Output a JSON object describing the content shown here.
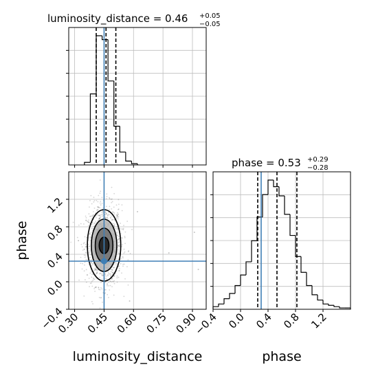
{
  "chart_data": [
    {
      "type": "histogram",
      "panel": "top-left",
      "title_main": "luminosity_distance = 0.46",
      "title_sup": "+0.05",
      "title_sub": "−0.05",
      "x_param": "luminosity_distance",
      "xlim": [
        0.27,
        0.97
      ],
      "grid": true,
      "bins": [
        {
          "x0": 0.35,
          "x1": 0.38,
          "count": 2
        },
        {
          "x0": 0.38,
          "x1": 0.41,
          "count": 55
        },
        {
          "x0": 0.41,
          "x1": 0.44,
          "count": 100
        },
        {
          "x0": 0.44,
          "x1": 0.47,
          "count": 97
        },
        {
          "x0": 0.47,
          "x1": 0.5,
          "count": 65
        },
        {
          "x0": 0.5,
          "x1": 0.53,
          "count": 30
        },
        {
          "x0": 0.53,
          "x1": 0.56,
          "count": 10
        },
        {
          "x0": 0.56,
          "x1": 0.59,
          "count": 3
        },
        {
          "x0": 0.59,
          "x1": 0.62,
          "count": 1
        }
      ],
      "quantile_lines": [
        0.41,
        0.46,
        0.51
      ],
      "truth_line": 0.45
    },
    {
      "type": "contour",
      "panel": "bottom-left",
      "xlabel": "luminosity_distance",
      "ylabel": "phase",
      "xlim": [
        0.27,
        0.97
      ],
      "ylim": [
        -0.4,
        1.6
      ],
      "x_ticks": [
        0.3,
        0.45,
        0.6,
        0.75,
        0.9
      ],
      "x_tick_labels": [
        "0.30",
        "0.45",
        "0.60",
        "0.75",
        "0.90"
      ],
      "y_ticks": [
        -0.4,
        0.0,
        0.4,
        0.8,
        1.2
      ],
      "y_tick_labels": [
        "−0.4",
        "0.0",
        "0.4",
        "0.8",
        "1.2"
      ],
      "grid": true,
      "center": [
        0.45,
        0.53
      ],
      "contour_levels": [
        {
          "rx": 0.025,
          "ry": 0.12,
          "fill": "#1a1a1a"
        },
        {
          "rx": 0.045,
          "ry": 0.25,
          "fill": "#6e6e6e"
        },
        {
          "rx": 0.065,
          "ry": 0.38,
          "fill": "#b5b5b5"
        },
        {
          "rx": 0.085,
          "ry": 0.52,
          "fill": "none"
        }
      ],
      "truth_point": [
        0.45,
        0.3
      ]
    },
    {
      "type": "histogram",
      "panel": "bottom-right",
      "title_main": "phase = 0.53",
      "title_sup": "+0.29",
      "title_sub": "−0.28",
      "x_param": "phase",
      "xlabel": "phase",
      "xlim": [
        -0.4,
        1.6
      ],
      "x_ticks": [
        -0.4,
        0.0,
        0.4,
        0.8,
        1.2
      ],
      "x_tick_labels": [
        "−0.4",
        "0.0",
        "0.4",
        "0.8",
        "1.2"
      ],
      "grid": true,
      "bins": [
        {
          "x0": -0.4,
          "x1": -0.32,
          "count": 2
        },
        {
          "x0": -0.32,
          "x1": -0.24,
          "count": 4
        },
        {
          "x0": -0.24,
          "x1": -0.16,
          "count": 8
        },
        {
          "x0": -0.16,
          "x1": -0.08,
          "count": 12
        },
        {
          "x0": -0.08,
          "x1": 0.0,
          "count": 18
        },
        {
          "x0": 0.0,
          "x1": 0.08,
          "count": 26
        },
        {
          "x0": 0.08,
          "x1": 0.16,
          "count": 36
        },
        {
          "x0": 0.16,
          "x1": 0.24,
          "count": 52
        },
        {
          "x0": 0.24,
          "x1": 0.32,
          "count": 70
        },
        {
          "x0": 0.32,
          "x1": 0.4,
          "count": 87
        },
        {
          "x0": 0.4,
          "x1": 0.48,
          "count": 98
        },
        {
          "x0": 0.48,
          "x1": 0.56,
          "count": 93
        },
        {
          "x0": 0.56,
          "x1": 0.64,
          "count": 86
        },
        {
          "x0": 0.64,
          "x1": 0.72,
          "count": 72
        },
        {
          "x0": 0.72,
          "x1": 0.8,
          "count": 56
        },
        {
          "x0": 0.8,
          "x1": 0.88,
          "count": 40
        },
        {
          "x0": 0.88,
          "x1": 0.96,
          "count": 28
        },
        {
          "x0": 0.96,
          "x1": 1.04,
          "count": 18
        },
        {
          "x0": 1.04,
          "x1": 1.12,
          "count": 11
        },
        {
          "x0": 1.12,
          "x1": 1.2,
          "count": 7
        },
        {
          "x0": 1.2,
          "x1": 1.28,
          "count": 4
        },
        {
          "x0": 1.28,
          "x1": 1.36,
          "count": 3
        },
        {
          "x0": 1.36,
          "x1": 1.44,
          "count": 2
        },
        {
          "x0": 1.44,
          "x1": 1.52,
          "count": 1
        },
        {
          "x0": 1.52,
          "x1": 1.6,
          "count": 1
        }
      ],
      "quantile_lines": [
        0.25,
        0.53,
        0.82
      ],
      "truth_line": 0.3
    }
  ],
  "colors": {
    "truth": "#3f7fb5",
    "hist": "#000000",
    "grid": "#bdbdbd",
    "scatter": "#555555"
  }
}
